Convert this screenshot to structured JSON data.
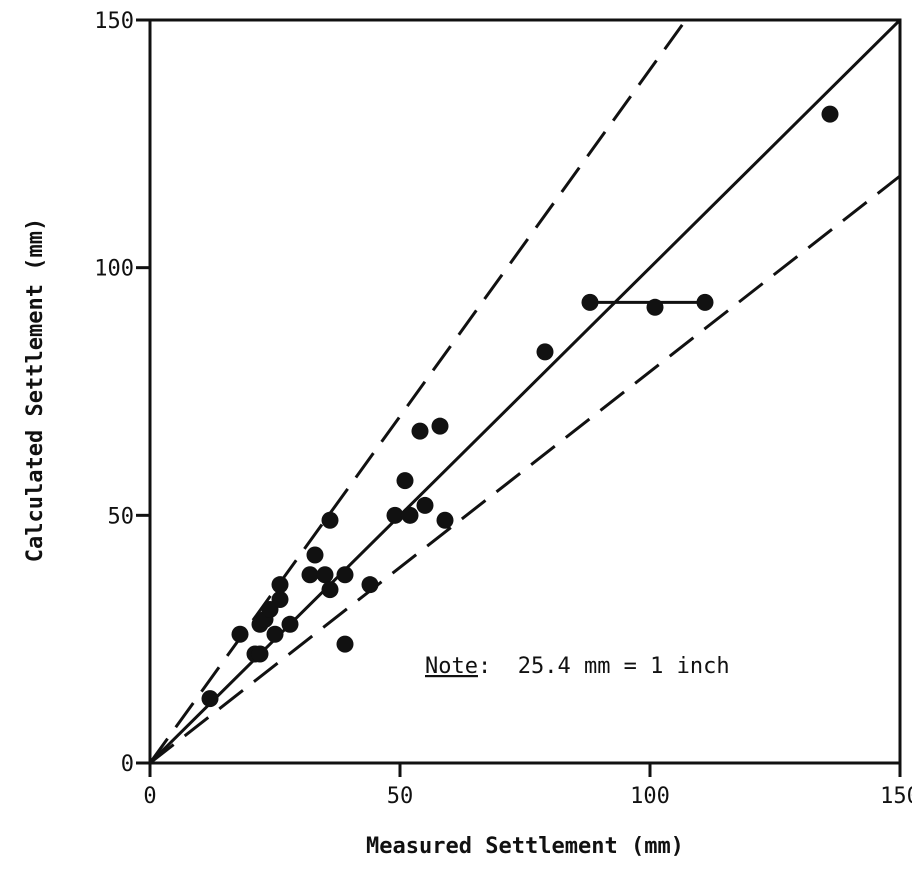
{
  "chart_data": {
    "type": "scatter",
    "title": "",
    "xlabel": "Measured Settlement (mm)",
    "ylabel": "Calculated Settlement (mm)",
    "xlim": [
      0,
      150
    ],
    "ylim": [
      0,
      150
    ],
    "xticks": [
      0,
      50,
      100,
      150
    ],
    "yticks": [
      0,
      50,
      100,
      150
    ],
    "grid": false,
    "note": {
      "label": "Note",
      "text": ":  25.4 mm = 1 inch"
    },
    "points": [
      {
        "x": 12,
        "y": 13
      },
      {
        "x": 18,
        "y": 26
      },
      {
        "x": 21,
        "y": 22
      },
      {
        "x": 22,
        "y": 22
      },
      {
        "x": 22,
        "y": 28
      },
      {
        "x": 23,
        "y": 29
      },
      {
        "x": 24,
        "y": 31
      },
      {
        "x": 25,
        "y": 26
      },
      {
        "x": 26,
        "y": 33
      },
      {
        "x": 26,
        "y": 36
      },
      {
        "x": 28,
        "y": 28
      },
      {
        "x": 32,
        "y": 38
      },
      {
        "x": 33,
        "y": 42
      },
      {
        "x": 35,
        "y": 38
      },
      {
        "x": 36,
        "y": 35
      },
      {
        "x": 36,
        "y": 49
      },
      {
        "x": 39,
        "y": 38
      },
      {
        "x": 39,
        "y": 24
      },
      {
        "x": 44,
        "y": 36
      },
      {
        "x": 49,
        "y": 50
      },
      {
        "x": 51,
        "y": 57
      },
      {
        "x": 52,
        "y": 50
      },
      {
        "x": 54,
        "y": 67
      },
      {
        "x": 55,
        "y": 52
      },
      {
        "x": 58,
        "y": 68
      },
      {
        "x": 59,
        "y": 49
      },
      {
        "x": 79,
        "y": 83
      },
      {
        "x": 88,
        "y": 93
      },
      {
        "x": 101,
        "y": 92
      },
      {
        "x": 111,
        "y": 93
      },
      {
        "x": 136,
        "y": 131
      }
    ],
    "segments": [
      {
        "from": [
          88,
          93
        ],
        "to": [
          111,
          93
        ]
      }
    ],
    "reference_lines": [
      {
        "style": "solid",
        "slope": 1.0
      },
      {
        "style": "dashed",
        "slope": 1.4
      },
      {
        "style": "dashed",
        "slope": 0.79
      }
    ]
  }
}
